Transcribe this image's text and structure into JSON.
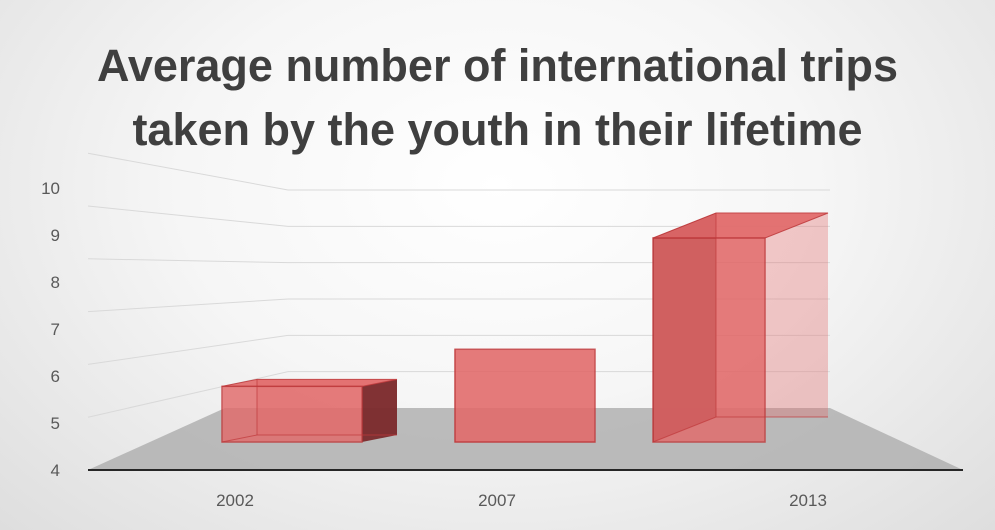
{
  "chart_data": {
    "type": "bar",
    "title": [
      "Average number of international trips",
      "taken by the youth in their lifetime"
    ],
    "categories": [
      "2002",
      "2007",
      "2013"
    ],
    "series": [
      {
        "values": [
          6.2,
          7.0,
          9.4
        ]
      }
    ],
    "ylim": [
      4,
      10
    ],
    "yticks": [
      4,
      5,
      6,
      7,
      8,
      9,
      10
    ],
    "grid": true,
    "legend": "none",
    "style": "3d-column",
    "colors": {
      "bar_face": "#e26a6a",
      "bar_edge": "#c0393b",
      "bar_side": "#7a2a2c",
      "floor": "#b0b0b0",
      "axis": "#262626",
      "grid": "#d9d9d9",
      "text": "#595959",
      "title": "#3f3f3f"
    }
  }
}
